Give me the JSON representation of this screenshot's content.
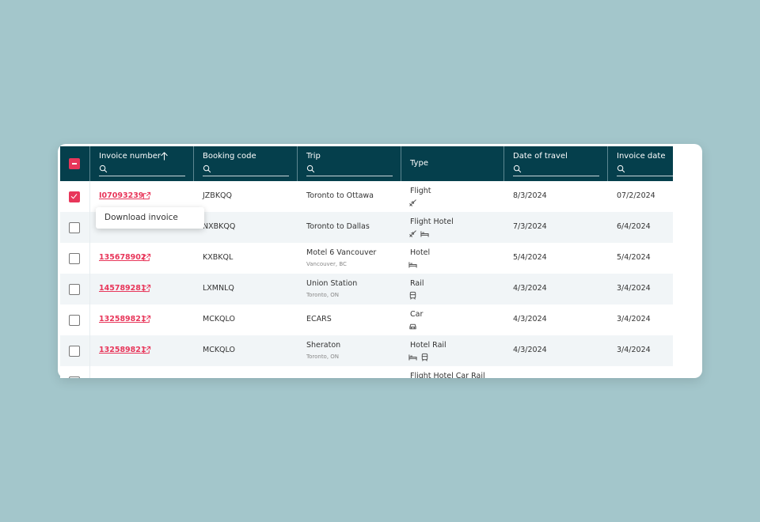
{
  "table": {
    "headers": [
      "Invoice number",
      "Booking code",
      "Trip",
      "Type",
      "Date of travel",
      "Invoice date"
    ],
    "rows": [
      {
        "invoice": "I07093239",
        "booking": "JZBKQQ",
        "trip": "Toronto to Ottawa",
        "type": "Flight",
        "travel_date": "8/3/2024",
        "invoice_date": "07/2/2024",
        "selected": true
      },
      {
        "booking": "NXBKQQ",
        "trip": "Toronto to Dallas",
        "type": "Flight Hotel",
        "travel_date": "7/3/2024",
        "invoice_date": "6/4/2024",
        "selected": false
      },
      {
        "invoice": "135678902",
        "booking": "KXBKQL",
        "trip": "Motel 6 Vancouver",
        "trip_detail": "Vancouver, BC",
        "type": "Hotel",
        "travel_date": "5/4/2024",
        "invoice_date": "5/4/2024",
        "selected": false
      },
      {
        "invoice": "145789281",
        "booking": "LXMNLQ",
        "trip": "Union Station",
        "trip_detail": "Toronto, ON",
        "type": "Rail",
        "travel_date": "4/3/2024",
        "invoice_date": "3/4/2024",
        "selected": false
      },
      {
        "invoice": "132589821",
        "booking": "MCKQLO",
        "trip": "ECARS",
        "type": "Car",
        "travel_date": "4/3/2024",
        "invoice_date": "3/4/2024",
        "selected": false
      },
      {
        "invoice": "132589821",
        "booking": "MCKQLO",
        "trip": "Sheraton",
        "trip_detail": "Toronto, ON",
        "type": "Hotel Rail",
        "travel_date": "4/3/2024",
        "invoice_date": "3/4/2024",
        "selected": false
      },
      {
        "type": "Flight Hotel Car Rail",
        "selected": false
      }
    ]
  },
  "tooltip": "Download invoice"
}
